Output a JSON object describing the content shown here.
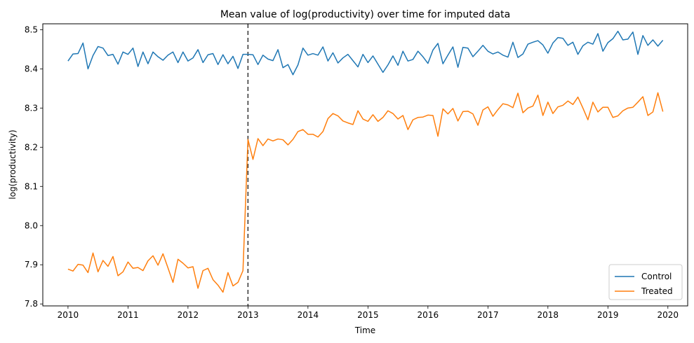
{
  "chart_data": {
    "type": "line",
    "title": "Mean value of log(productivity) over time for imputed data",
    "xlabel": "Time",
    "ylabel": "log(productivity)",
    "xlim": [
      2009.58,
      2020.33
    ],
    "ylim": [
      7.795,
      8.515
    ],
    "xticks": [
      2010,
      2011,
      2012,
      2013,
      2014,
      2015,
      2016,
      2017,
      2018,
      2019,
      2020
    ],
    "xtick_labels": [
      "2010",
      "2011",
      "2012",
      "2013",
      "2014",
      "2015",
      "2016",
      "2017",
      "2018",
      "2019",
      "2020"
    ],
    "yticks": [
      7.8,
      7.9,
      8.0,
      8.1,
      8.2,
      8.3,
      8.4,
      8.5
    ],
    "ytick_labels": [
      "7.8",
      "7.9",
      "8.0",
      "8.1",
      "8.2",
      "8.3",
      "8.4",
      "8.5"
    ],
    "vline": {
      "x": 2013,
      "style": "dashed",
      "color": "#333333"
    },
    "grid": false,
    "legend_position": "lower-right",
    "x_start": 2010,
    "x_step_months": 1,
    "series": [
      {
        "name": "Control",
        "color": "#1f77b4",
        "values": [
          8.42,
          8.438,
          8.439,
          8.466,
          8.4,
          8.434,
          8.457,
          8.453,
          8.434,
          8.437,
          8.412,
          8.443,
          8.437,
          8.453,
          8.406,
          8.443,
          8.413,
          8.443,
          8.431,
          8.422,
          8.435,
          8.443,
          8.416,
          8.443,
          8.42,
          8.428,
          8.449,
          8.416,
          8.436,
          8.439,
          8.411,
          8.436,
          8.413,
          8.432,
          8.401,
          8.437,
          8.437,
          8.436,
          8.411,
          8.435,
          8.425,
          8.421,
          8.449,
          8.403,
          8.411,
          8.385,
          8.41,
          8.453,
          8.435,
          8.439,
          8.435,
          8.456,
          8.42,
          8.441,
          8.415,
          8.428,
          8.437,
          8.421,
          8.405,
          8.437,
          8.416,
          8.433,
          8.412,
          8.391,
          8.41,
          8.433,
          8.409,
          8.445,
          8.42,
          8.424,
          8.445,
          8.431,
          8.414,
          8.448,
          8.465,
          8.413,
          8.435,
          8.456,
          8.404,
          8.455,
          8.453,
          8.431,
          8.445,
          8.46,
          8.445,
          8.438,
          8.443,
          8.435,
          8.43,
          8.468,
          8.429,
          8.438,
          8.463,
          8.468,
          8.472,
          8.461,
          8.44,
          8.466,
          8.48,
          8.478,
          8.46,
          8.468,
          8.437,
          8.459,
          8.468,
          8.463,
          8.49,
          8.445,
          8.467,
          8.477,
          8.496,
          8.474,
          8.476,
          8.494,
          8.437,
          8.485,
          8.46,
          8.474,
          8.458,
          8.473
        ]
      },
      {
        "name": "Treated",
        "color": "#ff7f0e",
        "values": [
          7.889,
          7.884,
          7.901,
          7.899,
          7.88,
          7.93,
          7.882,
          7.911,
          7.896,
          7.921,
          7.872,
          7.882,
          7.907,
          7.891,
          7.893,
          7.885,
          7.91,
          7.923,
          7.899,
          7.928,
          7.892,
          7.855,
          7.914,
          7.904,
          7.892,
          7.895,
          7.84,
          7.885,
          7.891,
          7.862,
          7.848,
          7.83,
          7.88,
          7.846,
          7.855,
          7.885,
          8.22,
          8.169,
          8.222,
          8.204,
          8.221,
          8.216,
          8.221,
          8.219,
          8.206,
          8.22,
          8.24,
          8.245,
          8.233,
          8.233,
          8.226,
          8.24,
          8.273,
          8.286,
          8.28,
          8.267,
          8.262,
          8.258,
          8.293,
          8.272,
          8.266,
          8.283,
          8.266,
          8.276,
          8.293,
          8.286,
          8.272,
          8.281,
          8.245,
          8.27,
          8.276,
          8.277,
          8.282,
          8.281,
          8.228,
          8.298,
          8.285,
          8.299,
          8.267,
          8.291,
          8.292,
          8.285,
          8.256,
          8.295,
          8.303,
          8.279,
          8.296,
          8.311,
          8.308,
          8.301,
          8.338,
          8.288,
          8.3,
          8.305,
          8.333,
          8.281,
          8.315,
          8.286,
          8.303,
          8.307,
          8.318,
          8.309,
          8.328,
          8.3,
          8.27,
          8.315,
          8.29,
          8.302,
          8.302,
          8.276,
          8.28,
          8.293,
          8.3,
          8.302,
          8.315,
          8.329,
          8.281,
          8.29,
          8.339,
          8.291
        ]
      }
    ]
  }
}
